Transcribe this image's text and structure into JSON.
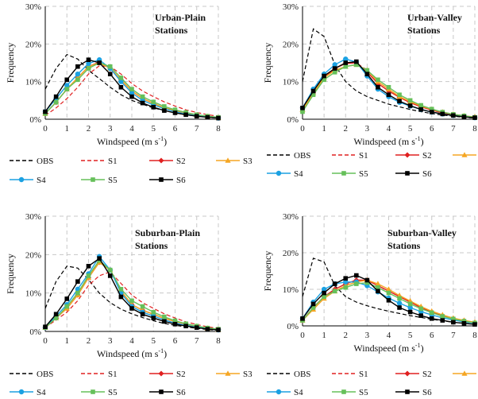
{
  "legend_labels": {
    "OBS": "OBS",
    "S1": "S1",
    "S2": "S2",
    "S3": "S3",
    "S4": "S4",
    "S5": "S5",
    "S6": "S6"
  },
  "chart_data": [
    {
      "type": "line",
      "title_lines": [
        "Urban-Plain",
        "Stations"
      ],
      "xlabel": "Windspeed (m s",
      "xlabel_sup": "-1",
      "xlabel_end": ")",
      "ylabel": "Frequency",
      "xlim": [
        0,
        8
      ],
      "ylim": [
        0,
        30
      ],
      "xticks": [
        "0",
        "1",
        "2",
        "3",
        "4",
        "5",
        "6",
        "7",
        "8"
      ],
      "yticks": [
        "0%",
        "10%",
        "20%",
        "30%"
      ],
      "grid": true,
      "legend": "bottom",
      "x": [
        0,
        0.5,
        1,
        1.5,
        2,
        2.5,
        3,
        3.5,
        4,
        4.5,
        5,
        5.5,
        6,
        6.5,
        7,
        7.5,
        8
      ],
      "series": [
        {
          "name": "OBS",
          "color": "#000000",
          "dash": true,
          "marker": "none",
          "values": [
            8,
            13.5,
            17.2,
            16,
            13,
            10.8,
            8.5,
            6.5,
            5,
            4,
            3,
            2.3,
            1.7,
            1.2,
            0.8,
            0.5,
            0.3
          ]
        },
        {
          "name": "S1",
          "color": "#e02020",
          "dash": true,
          "marker": "none",
          "values": [
            1,
            3,
            5.5,
            8.5,
            12,
            14.2,
            14,
            12,
            9.5,
            7.5,
            6,
            4.6,
            3.5,
            2.5,
            1.8,
            1.2,
            0.8
          ]
        },
        {
          "name": "S2",
          "color": "#e02020",
          "dash": false,
          "marker": "diamond",
          "values": [
            1.5,
            4.5,
            8,
            11,
            14,
            15.2,
            13.5,
            10.5,
            7.5,
            5.5,
            4.2,
            3,
            2.3,
            1.6,
            1.1,
            0.7,
            0.4
          ]
        },
        {
          "name": "S3",
          "color": "#f5a623",
          "dash": false,
          "marker": "triangle",
          "values": [
            1.5,
            4.5,
            8,
            11,
            14,
            15,
            13.5,
            10.5,
            7.5,
            5.5,
            4.2,
            3,
            2.3,
            1.6,
            1.1,
            0.7,
            0.4
          ]
        },
        {
          "name": "S4",
          "color": "#1ba1e2",
          "dash": false,
          "marker": "circle",
          "values": [
            2,
            5.5,
            9,
            12,
            14.8,
            15.8,
            13.5,
            10,
            7,
            5,
            3.8,
            2.8,
            2,
            1.4,
            0.9,
            0.6,
            0.3
          ]
        },
        {
          "name": "S5",
          "color": "#66c05a",
          "dash": false,
          "marker": "square",
          "values": [
            1.5,
            4.5,
            8,
            10.5,
            13.5,
            15,
            14,
            11,
            8,
            6,
            4.6,
            3.4,
            2.5,
            1.8,
            1.2,
            0.8,
            0.5
          ]
        },
        {
          "name": "S6",
          "color": "#000000",
          "dash": false,
          "marker": "square",
          "values": [
            2,
            6,
            10.5,
            14,
            15.8,
            15,
            12,
            8.5,
            6,
            4.3,
            3.2,
            2.3,
            1.7,
            1.2,
            0.8,
            0.5,
            0.3
          ]
        }
      ]
    },
    {
      "type": "line",
      "title_lines": [
        "Urban-Valley",
        "Stations"
      ],
      "xlabel": "Windspeed (m s",
      "xlabel_sup": "-1",
      "xlabel_end": ")",
      "ylabel": "Frequency",
      "xlim": [
        0,
        8
      ],
      "ylim": [
        0,
        30
      ],
      "xticks": [
        "0",
        "1",
        "2",
        "3",
        "4",
        "5",
        "6",
        "7",
        "8"
      ],
      "yticks": [
        "0%",
        "10%",
        "20%",
        "30%"
      ],
      "grid": true,
      "legend": "bottom",
      "x": [
        0,
        0.5,
        1,
        1.5,
        2,
        2.5,
        3,
        3.5,
        4,
        4.5,
        5,
        5.5,
        6,
        6.5,
        7,
        7.5,
        8
      ],
      "series": [
        {
          "name": "OBS",
          "color": "#000000",
          "dash": true,
          "marker": "none",
          "values": [
            10,
            24,
            22,
            14.5,
            10,
            7.5,
            6,
            5,
            4,
            3.3,
            2.6,
            2,
            1.5,
            1.1,
            0.8,
            0.5,
            0.3
          ]
        },
        {
          "name": "S1",
          "color": "#e02020",
          "dash": true,
          "marker": "none",
          "values": [
            3,
            7,
            11,
            13.5,
            15,
            15,
            13,
            10,
            8,
            6,
            4.6,
            3.5,
            2.6,
            1.9,
            1.3,
            0.9,
            0.6
          ]
        },
        {
          "name": "S2",
          "color": "#e02020",
          "dash": false,
          "marker": "diamond",
          "values": [
            3,
            7,
            11,
            13.5,
            14.8,
            15,
            12.5,
            9.5,
            7.5,
            5.8,
            4.4,
            3.3,
            2.4,
            1.7,
            1.2,
            0.8,
            0.5
          ]
        },
        {
          "name": "S3",
          "color": "#f5a623",
          "dash": false,
          "marker": "triangle",
          "values": [
            2.5,
            7,
            11,
            13,
            14,
            14.5,
            13,
            10,
            8,
            6,
            4.7,
            3.5,
            2.6,
            1.9,
            1.3,
            0.9,
            0.6
          ]
        },
        {
          "name": "S4",
          "color": "#1ba1e2",
          "dash": false,
          "marker": "circle",
          "values": [
            3,
            8,
            12,
            14.5,
            16,
            15.2,
            11.5,
            8,
            6,
            4.5,
            3.5,
            2.6,
            1.9,
            1.4,
            1,
            0.7,
            0.4
          ]
        },
        {
          "name": "S5",
          "color": "#66c05a",
          "dash": false,
          "marker": "square",
          "values": [
            2,
            6.5,
            10.5,
            12.5,
            14,
            14.5,
            13,
            10.5,
            8.5,
            6.5,
            5,
            3.7,
            2.7,
            1.9,
            1.3,
            0.9,
            0.5
          ]
        },
        {
          "name": "S6",
          "color": "#000000",
          "dash": false,
          "marker": "square",
          "values": [
            3,
            7.5,
            11.5,
            13.5,
            15,
            15.3,
            12,
            8.5,
            6.5,
            4.8,
            3.6,
            2.6,
            1.9,
            1.4,
            1,
            0.6,
            0.4
          ]
        }
      ]
    },
    {
      "type": "line",
      "title_lines": [
        "Suburban-Plain",
        "Stations"
      ],
      "xlabel": "Windspeed (m s",
      "xlabel_sup": "-1",
      "xlabel_end": ")",
      "ylabel": "Frequency",
      "xlim": [
        0,
        8
      ],
      "ylim": [
        0,
        30
      ],
      "xticks": [
        "0",
        "1",
        "2",
        "3",
        "4",
        "5",
        "6",
        "7",
        "8"
      ],
      "yticks": [
        "0%",
        "10%",
        "20%",
        "30%"
      ],
      "grid": true,
      "legend": "bottom",
      "x": [
        0,
        0.5,
        1,
        1.5,
        2,
        2.5,
        3,
        3.5,
        4,
        4.5,
        5,
        5.5,
        6,
        6.5,
        7,
        7.5,
        8
      ],
      "series": [
        {
          "name": "OBS",
          "color": "#000000",
          "dash": true,
          "marker": "none",
          "values": [
            6,
            13,
            17,
            16.5,
            13.5,
            10,
            7.5,
            5.8,
            4.6,
            3.6,
            2.8,
            2.1,
            1.6,
            1.2,
            0.8,
            0.5,
            0.3
          ]
        },
        {
          "name": "S1",
          "color": "#e02020",
          "dash": true,
          "marker": "none",
          "values": [
            1,
            3,
            5,
            8,
            12,
            14.5,
            15.5,
            12.5,
            9.5,
            7.5,
            6,
            4.6,
            3.5,
            2.5,
            1.8,
            1.2,
            0.8
          ]
        },
        {
          "name": "S2",
          "color": "#e02020",
          "dash": false,
          "marker": "diamond",
          "values": [
            1,
            3.5,
            6,
            9.5,
            14,
            18,
            16,
            10.5,
            7,
            5.5,
            4.5,
            3.4,
            2.6,
            1.9,
            1.3,
            0.8,
            0.5
          ]
        },
        {
          "name": "S3",
          "color": "#f5a623",
          "dash": false,
          "marker": "triangle",
          "values": [
            1,
            3.5,
            6,
            9.5,
            14,
            18,
            16,
            10.5,
            7,
            5.5,
            4.5,
            3.4,
            2.6,
            1.9,
            1.3,
            0.8,
            0.5
          ]
        },
        {
          "name": "S4",
          "color": "#1ba1e2",
          "dash": false,
          "marker": "circle",
          "values": [
            1,
            4,
            7,
            11,
            15,
            19.5,
            16,
            10,
            6.5,
            5,
            4,
            3,
            2.2,
            1.6,
            1.1,
            0.7,
            0.4
          ]
        },
        {
          "name": "S5",
          "color": "#66c05a",
          "dash": false,
          "marker": "square",
          "values": [
            1,
            3.5,
            6.5,
            10,
            14.5,
            18.5,
            16,
            11,
            8,
            6.5,
            5,
            3.8,
            2.8,
            2,
            1.4,
            0.9,
            0.6
          ]
        },
        {
          "name": "S6",
          "color": "#000000",
          "dash": false,
          "marker": "square",
          "values": [
            1.2,
            4.5,
            8.5,
            13,
            17,
            19,
            14.5,
            9,
            6,
            4.5,
            3.5,
            2.6,
            1.9,
            1.4,
            1,
            0.6,
            0.4
          ]
        }
      ]
    },
    {
      "type": "line",
      "title_lines": [
        "Suburban-Valley",
        "Stations"
      ],
      "xlabel": "Windspeed (m s",
      "xlabel_sup": "-1",
      "xlabel_end": ")",
      "ylabel": "Frequency",
      "xlim": [
        0,
        8
      ],
      "ylim": [
        0,
        30
      ],
      "xticks": [
        "0",
        "1",
        "2",
        "3",
        "4",
        "5",
        "6",
        "7",
        "8"
      ],
      "yticks": [
        "0%",
        "10%",
        "20%",
        "30%"
      ],
      "grid": true,
      "legend": "bottom",
      "x": [
        0,
        0.5,
        1,
        1.5,
        2,
        2.5,
        3,
        3.5,
        4,
        4.5,
        5,
        5.5,
        6,
        6.5,
        7,
        7.5,
        8
      ],
      "series": [
        {
          "name": "OBS",
          "color": "#000000",
          "dash": true,
          "marker": "none",
          "values": [
            8,
            18.5,
            17.5,
            11,
            8,
            6.5,
            5.5,
            4.7,
            4,
            3.4,
            2.8,
            2.3,
            1.8,
            1.4,
            1,
            0.7,
            0.4
          ]
        },
        {
          "name": "S1",
          "color": "#e02020",
          "dash": true,
          "marker": "none",
          "values": [
            1.5,
            5,
            8,
            10,
            11.5,
            12.5,
            12.5,
            11,
            9.5,
            8,
            6.5,
            5,
            3.8,
            2.8,
            2,
            1.4,
            0.9
          ]
        },
        {
          "name": "S2",
          "color": "#e02020",
          "dash": false,
          "marker": "diamond",
          "values": [
            1.5,
            5,
            8,
            10,
            11.5,
            12.5,
            12.5,
            11,
            9.5,
            8,
            6.5,
            5,
            3.8,
            2.8,
            2,
            1.4,
            0.9
          ]
        },
        {
          "name": "S3",
          "color": "#f5a623",
          "dash": false,
          "marker": "triangle",
          "values": [
            1.5,
            4.5,
            7.5,
            9.5,
            11,
            12,
            12.5,
            11.5,
            10,
            8.3,
            6.8,
            5.3,
            4,
            3,
            2.1,
            1.5,
            1
          ]
        },
        {
          "name": "S4",
          "color": "#1ba1e2",
          "dash": false,
          "marker": "circle",
          "values": [
            2,
            6.5,
            10,
            11.5,
            12,
            12,
            11,
            9.3,
            7.6,
            6.2,
            5,
            3.9,
            3,
            2.2,
            1.6,
            1.1,
            0.7
          ]
        },
        {
          "name": "S5",
          "color": "#66c05a",
          "dash": false,
          "marker": "square",
          "values": [
            1.5,
            5,
            8,
            9.5,
            10.5,
            11.5,
            11.8,
            10.5,
            9,
            7.5,
            6,
            4.7,
            3.6,
            2.6,
            1.9,
            1.3,
            0.8
          ]
        },
        {
          "name": "S6",
          "color": "#000000",
          "dash": false,
          "marker": "square",
          "values": [
            2,
            6,
            9,
            11.5,
            13,
            13.8,
            12.5,
            9.5,
            7,
            5,
            3.8,
            2.8,
            2,
            1.5,
            1,
            0.7,
            0.4
          ]
        }
      ]
    }
  ]
}
